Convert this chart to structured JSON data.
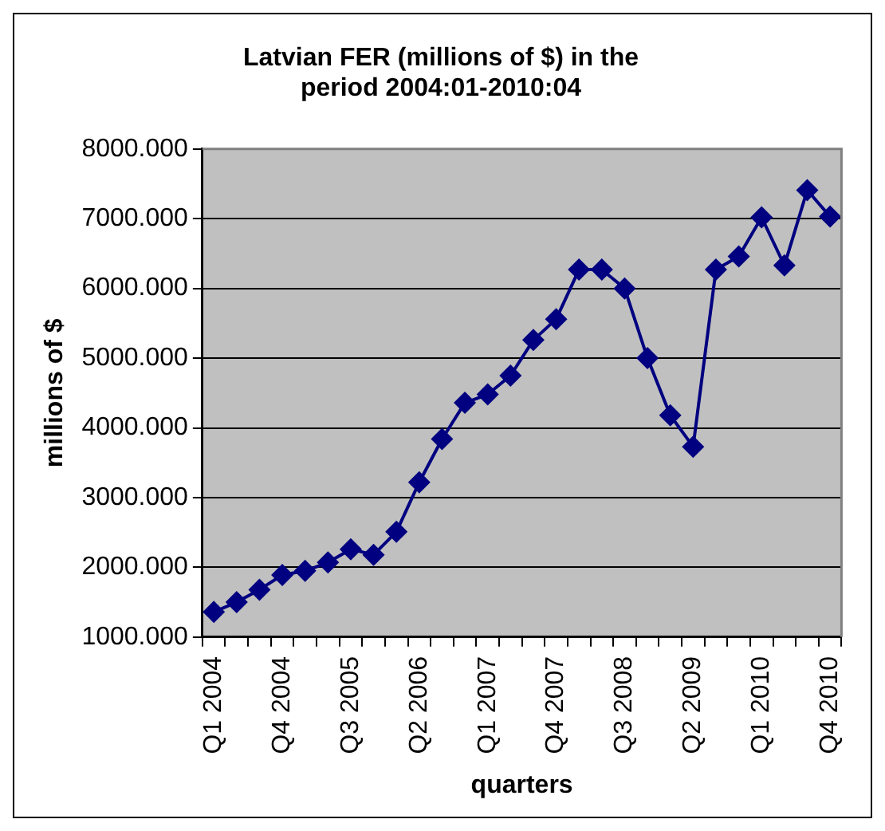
{
  "chart_data": {
    "type": "line",
    "title": "Latvian FER (millions of $) in the period 2004:01-2010:04",
    "xlabel": "quarters",
    "ylabel": "millions of $",
    "categories": [
      "Q1 2004",
      null,
      null,
      "Q4 2004",
      null,
      null,
      "Q3 2005",
      null,
      null,
      "Q2 2006",
      null,
      null,
      "Q1 2007",
      null,
      null,
      "Q4 2007",
      null,
      null,
      "Q3 2008",
      null,
      null,
      "Q2 2009",
      null,
      null,
      "Q1 2010",
      null,
      null,
      "Q4 2010"
    ],
    "series": [
      {
        "color": "#000080",
        "values": [
          1360,
          1500,
          1680,
          1890,
          1950,
          2070,
          2260,
          2180,
          2510,
          3220,
          3840,
          4360,
          4480,
          4750,
          5260,
          5560,
          6270,
          6270,
          6000,
          5000,
          4180,
          3730,
          6270,
          6460,
          7020,
          6330,
          7410,
          7030
        ]
      }
    ],
    "ylim": [
      1000,
      8000
    ],
    "yticks": [
      {
        "value": 1000,
        "label": "1000.000"
      },
      {
        "value": 2000,
        "label": "2000.000"
      },
      {
        "value": 3000,
        "label": "3000.000"
      },
      {
        "value": 4000,
        "label": "4000.000"
      },
      {
        "value": 5000,
        "label": "5000.000"
      },
      {
        "value": 6000,
        "label": "6000.000"
      },
      {
        "value": 7000,
        "label": "7000.000"
      },
      {
        "value": 8000,
        "label": "8000.000"
      }
    ],
    "grid": "y",
    "legend": false,
    "marker": "diamond",
    "line_style": "solid"
  }
}
